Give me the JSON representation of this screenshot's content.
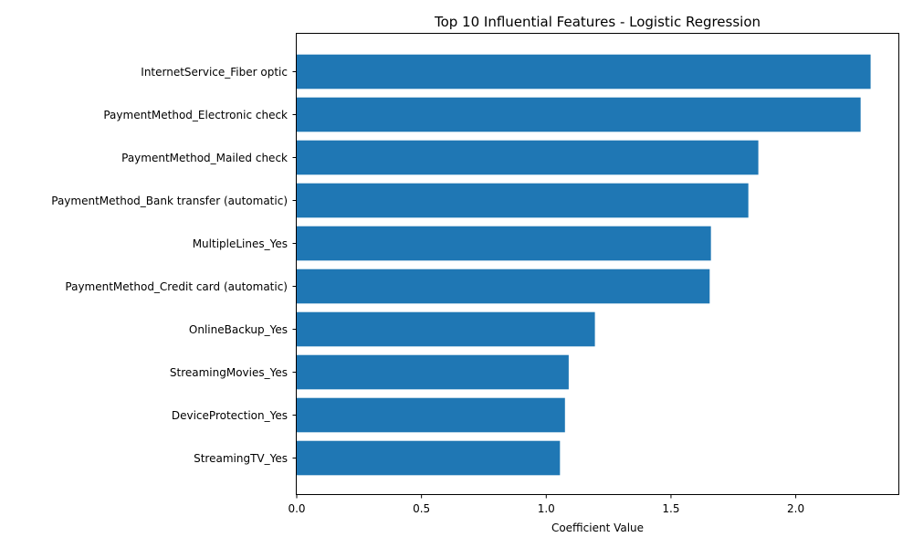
{
  "chart_data": {
    "type": "bar",
    "orientation": "horizontal",
    "title": "Top 10 Influential Features - Logistic Regression",
    "xlabel": "Coefficient Value",
    "ylabel": "",
    "categories": [
      "InternetService_Fiber optic",
      "PaymentMethod_Electronic check",
      "PaymentMethod_Mailed check",
      "PaymentMethod_Bank transfer (automatic)",
      "MultipleLines_Yes",
      "PaymentMethod_Credit card (automatic)",
      "OnlineBackup_Yes",
      "StreamingMovies_Yes",
      "DeviceProtection_Yes",
      "StreamingTV_Yes"
    ],
    "values": [
      2.3,
      2.26,
      1.85,
      1.81,
      1.66,
      1.655,
      1.195,
      1.09,
      1.075,
      1.055
    ],
    "xlim": [
      0,
      2.415
    ],
    "xticks": [
      0,
      0.5,
      1.0,
      1.5,
      2.0
    ],
    "xtick_labels": [
      "0.0",
      "0.5",
      "1.0",
      "1.5",
      "2.0"
    ],
    "grid": false,
    "legend": "none",
    "bar_color": "#1f77b4"
  }
}
